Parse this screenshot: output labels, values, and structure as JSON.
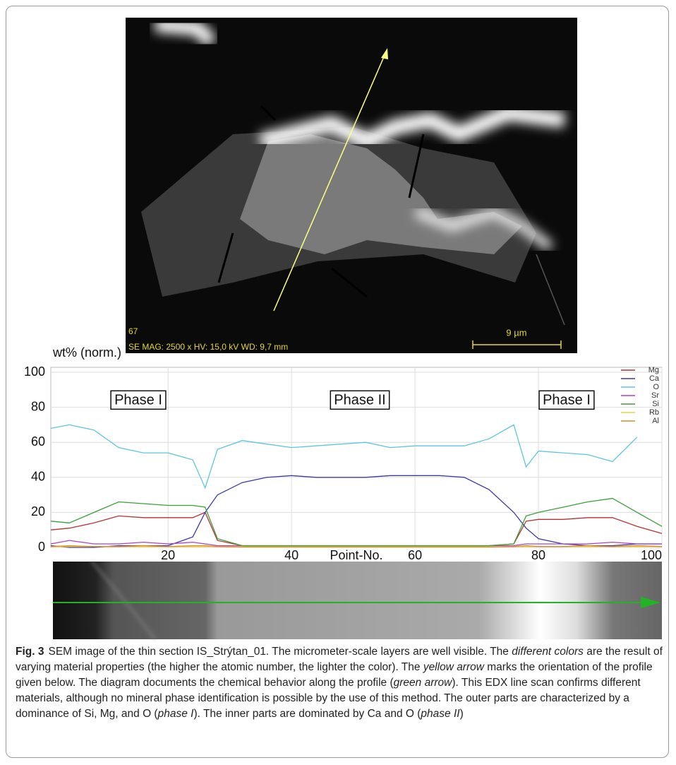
{
  "image": {
    "frame_number": "67",
    "info": "SE  MAG: 2500 x  HV: 15,0 kV  WD: 9,7 mm",
    "scale": "9 µm"
  },
  "chart_data": {
    "type": "line",
    "ylabel": "wt% (norm.)",
    "xlabel": "Point-No.",
    "annotations": [
      "Phase I",
      "Phase II",
      "Phase I"
    ],
    "x": [
      1,
      4,
      8,
      12,
      16,
      20,
      24,
      26,
      28,
      32,
      36,
      40,
      44,
      48,
      52,
      56,
      60,
      64,
      68,
      72,
      76,
      78,
      80,
      84,
      88,
      92,
      96,
      100
    ],
    "series": [
      {
        "name": "Mg",
        "color": "#b83232",
        "values": [
          10,
          11,
          14,
          18,
          17,
          17,
          17,
          20,
          4,
          1,
          0.5,
          0.5,
          0.5,
          0.5,
          0.5,
          0.5,
          0.5,
          0.5,
          0.5,
          1,
          2,
          15,
          16,
          16,
          17,
          17,
          12,
          8
        ]
      },
      {
        "name": "Ca",
        "color": "#3a3aa8",
        "values": [
          1,
          0,
          0,
          1,
          1,
          1,
          6,
          20,
          30,
          37,
          40,
          41,
          40,
          40,
          40,
          41,
          41,
          41,
          40,
          33,
          20,
          11,
          5,
          2,
          1,
          1,
          2,
          2
        ]
      },
      {
        "name": "O",
        "color": "#5cc6df",
        "values": [
          68,
          70,
          67,
          57,
          54,
          54,
          50,
          34,
          56,
          61,
          59,
          57,
          58,
          59,
          60,
          57,
          58,
          58,
          58,
          62,
          70,
          46,
          55,
          54,
          53,
          49,
          63,
          null
        ]
      },
      {
        "name": "Sr",
        "color": "#b040c0",
        "values": [
          2,
          4,
          2,
          2,
          3,
          2,
          3,
          2,
          1,
          1,
          1,
          1,
          1,
          1,
          1,
          1,
          1,
          1,
          1,
          1,
          1,
          2,
          2,
          2,
          2,
          3,
          2,
          2
        ]
      },
      {
        "name": "Si",
        "color": "#3aa03a",
        "values": [
          15,
          14,
          20,
          26,
          25,
          24,
          24,
          23,
          5,
          1,
          1,
          1,
          1,
          1,
          1,
          1,
          1,
          1,
          1,
          1,
          2,
          18,
          20,
          23,
          26,
          28,
          20,
          12
        ]
      },
      {
        "name": "Rb",
        "color": "#e6d640",
        "values": [
          0.5,
          0.5,
          0.5,
          0.5,
          0.5,
          0.5,
          0.5,
          0.5,
          0.5,
          0.5,
          0.5,
          0.5,
          0.5,
          0.5,
          0.5,
          0.5,
          0.5,
          0.5,
          0.5,
          0.5,
          0.5,
          0.5,
          0.5,
          0.5,
          0.5,
          0.5,
          0.5,
          0.5
        ]
      },
      {
        "name": "Al",
        "color": "#e08a20",
        "values": [
          0.5,
          1,
          0.5,
          0.5,
          1,
          0.5,
          1,
          1,
          0.5,
          0.3,
          0.3,
          0.3,
          0.3,
          0.3,
          0.3,
          0.3,
          0.3,
          0.3,
          0.3,
          0.3,
          0.5,
          1,
          0.5,
          0.5,
          1,
          0.5,
          1,
          0.5
        ]
      }
    ],
    "xlim": [
      1,
      100
    ],
    "xticks": [
      20,
      40,
      60,
      80,
      100
    ],
    "ylim": [
      0,
      100
    ],
    "yticks": [
      0,
      20,
      40,
      60,
      80,
      100
    ],
    "grid": true
  },
  "caption": {
    "label": "Fig. 3",
    "parts": [
      "SEM image of the thin section IS_Strýtan_01. The micrometer-scale layers are well visible. The ",
      "different colors",
      " are the result of varying material properties (the higher the atomic number, the lighter the color). The ",
      "yellow arrow",
      " marks the orientation of the profile given below. The diagram documents the chemical behavior along the profile (",
      "green arrow",
      "). This EDX line scan confirms different materials, although no mineral phase identification is possible by the use of this method. The outer parts are characterized by a dominance of Si, Mg, and O (",
      "phase I",
      "). The inner parts are dominated by Ca and O (",
      "phase II",
      ")"
    ]
  }
}
